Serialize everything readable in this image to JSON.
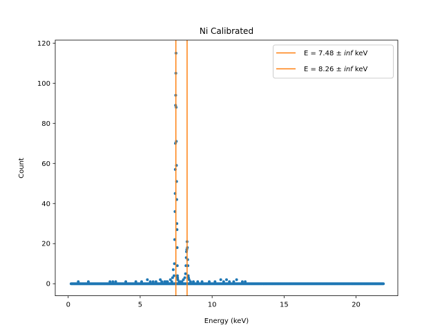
{
  "chart_data": {
    "type": "scatter",
    "title": "Ni Calibrated",
    "xlabel": "Energy (keV)",
    "ylabel": "Count",
    "xlim": [
      -0.9,
      22.9
    ],
    "ylim": [
      -6,
      121.5
    ],
    "xticks": [
      0,
      5,
      10,
      15,
      20
    ],
    "xtick_labels": [
      "0",
      "5",
      "10",
      "15",
      "20"
    ],
    "yticks": [
      0,
      20,
      40,
      60,
      80,
      100,
      120
    ],
    "ytick_labels": [
      "0",
      "20",
      "40",
      "60",
      "80",
      "100",
      "120"
    ],
    "grid": false,
    "legend_position": "top-right",
    "colors": {
      "points": "#1f77b4",
      "lines": "#ff7f0e"
    },
    "vlines": [
      {
        "x": 7.48,
        "label_prefix": "E = 7.48 ± ",
        "label_italic": "inf",
        "label_suffix": " keV"
      },
      {
        "x": 8.26,
        "label_prefix": "E = 8.26 ± ",
        "label_italic": "inf",
        "label_suffix": " keV"
      }
    ],
    "baseline": {
      "x_start": 0.2,
      "x_end": 21.9,
      "step": 0.05,
      "y": 0
    },
    "points": [
      [
        0.7,
        1
      ],
      [
        1.4,
        1
      ],
      [
        2.9,
        1
      ],
      [
        3.1,
        1
      ],
      [
        3.3,
        1
      ],
      [
        4.0,
        1
      ],
      [
        4.7,
        1
      ],
      [
        5.1,
        1
      ],
      [
        5.5,
        2
      ],
      [
        5.7,
        1
      ],
      [
        5.9,
        1
      ],
      [
        6.1,
        1
      ],
      [
        6.4,
        2
      ],
      [
        6.5,
        1
      ],
      [
        6.7,
        1
      ],
      [
        6.8,
        1
      ],
      [
        6.9,
        1
      ],
      [
        7.1,
        2
      ],
      [
        7.2,
        1
      ],
      [
        7.25,
        3
      ],
      [
        7.3,
        7
      ],
      [
        7.35,
        4
      ],
      [
        7.38,
        10
      ],
      [
        7.4,
        22
      ],
      [
        7.42,
        36
      ],
      [
        7.43,
        45
      ],
      [
        7.44,
        57
      ],
      [
        7.45,
        70
      ],
      [
        7.46,
        89
      ],
      [
        7.47,
        94
      ],
      [
        7.48,
        105
      ],
      [
        7.49,
        115
      ],
      [
        7.5,
        88
      ],
      [
        7.51,
        71
      ],
      [
        7.52,
        59
      ],
      [
        7.53,
        51
      ],
      [
        7.54,
        42
      ],
      [
        7.55,
        30
      ],
      [
        7.56,
        27
      ],
      [
        7.57,
        18
      ],
      [
        7.58,
        9
      ],
      [
        7.59,
        4
      ],
      [
        7.6,
        3
      ],
      [
        7.62,
        2
      ],
      [
        7.7,
        1
      ],
      [
        7.8,
        1
      ],
      [
        7.9,
        1
      ],
      [
        8.0,
        2
      ],
      [
        8.1,
        3
      ],
      [
        8.15,
        5
      ],
      [
        8.18,
        9
      ],
      [
        8.2,
        13
      ],
      [
        8.22,
        16
      ],
      [
        8.24,
        17
      ],
      [
        8.26,
        21
      ],
      [
        8.28,
        18
      ],
      [
        8.3,
        12
      ],
      [
        8.32,
        9
      ],
      [
        8.34,
        4
      ],
      [
        8.36,
        3
      ],
      [
        8.4,
        2
      ],
      [
        8.5,
        1
      ],
      [
        8.7,
        1
      ],
      [
        9.0,
        1
      ],
      [
        9.3,
        1
      ],
      [
        9.8,
        1
      ],
      [
        10.2,
        1
      ],
      [
        10.6,
        2
      ],
      [
        10.8,
        1
      ],
      [
        11.0,
        2
      ],
      [
        11.2,
        1
      ],
      [
        11.5,
        1
      ],
      [
        11.7,
        2
      ],
      [
        12.1,
        1
      ],
      [
        12.3,
        1
      ]
    ]
  }
}
